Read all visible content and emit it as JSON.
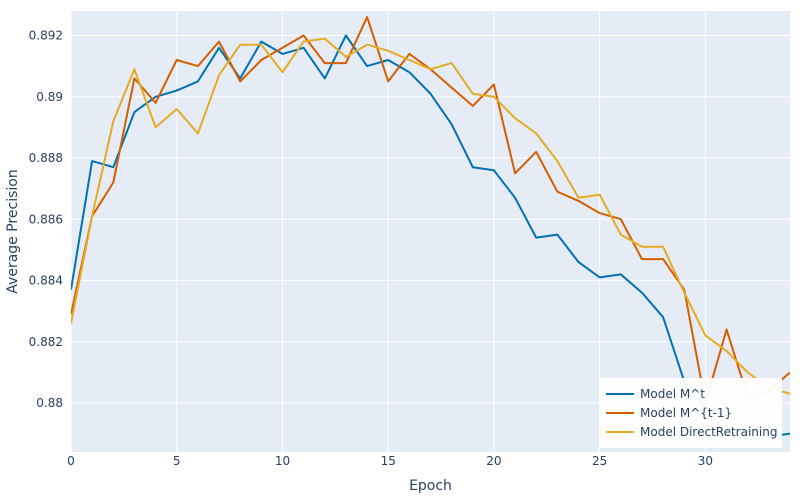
{
  "chart_data": {
    "type": "line",
    "title": "",
    "xlabel": "Epoch",
    "ylabel": "Average Precision",
    "xlim": [
      0,
      34
    ],
    "ylim": [
      0.8784,
      0.8928
    ],
    "xticks": [
      0,
      5,
      10,
      15,
      20,
      25,
      30
    ],
    "yticks": [
      0.88,
      0.882,
      0.884,
      0.886,
      0.888,
      0.89,
      0.892
    ],
    "ytick_labels": [
      "0.88",
      "0.882",
      "0.884",
      "0.886",
      "0.888",
      "0.89",
      "0.892"
    ],
    "grid": true,
    "legend_position": "bottom-right",
    "background": "#e5ecf6",
    "series": [
      {
        "name": "Model M^t",
        "color": "#0072b2",
        "x": [
          0,
          1,
          2,
          3,
          4,
          5,
          6,
          7,
          8,
          9,
          10,
          11,
          12,
          13,
          14,
          15,
          16,
          17,
          18,
          19,
          20,
          21,
          22,
          23,
          24,
          25,
          26,
          27,
          28,
          29,
          30,
          31,
          32,
          33,
          34
        ],
        "values": [
          0.8837,
          0.8879,
          0.8877,
          0.8895,
          0.89,
          0.8902,
          0.8905,
          0.8916,
          0.8906,
          0.8918,
          0.8914,
          0.8916,
          0.8906,
          0.892,
          0.891,
          0.8912,
          0.8908,
          0.8901,
          0.8891,
          0.8877,
          0.8876,
          0.8867,
          0.8854,
          0.8855,
          0.8846,
          0.8841,
          0.8842,
          0.8836,
          0.8828,
          0.8807,
          0.8798,
          0.879,
          0.8788,
          0.8789,
          0.879
        ]
      },
      {
        "name": "Model M^{t-1}",
        "color": "#d55e00",
        "x": [
          0,
          1,
          2,
          3,
          4,
          5,
          6,
          7,
          8,
          9,
          10,
          11,
          12,
          13,
          14,
          15,
          16,
          17,
          18,
          19,
          20,
          21,
          22,
          23,
          24,
          25,
          26,
          27,
          28,
          29,
          30,
          31,
          32,
          33,
          34
        ],
        "values": [
          0.8829,
          0.8861,
          0.8872,
          0.8906,
          0.8898,
          0.8912,
          0.891,
          0.8918,
          0.8905,
          0.8912,
          0.8916,
          0.892,
          0.8911,
          0.8911,
          0.8926,
          0.8905,
          0.8914,
          0.8909,
          0.8903,
          0.8897,
          0.8904,
          0.8875,
          0.8882,
          0.8869,
          0.8866,
          0.8862,
          0.886,
          0.8847,
          0.8847,
          0.8837,
          0.88,
          0.8824,
          0.8802,
          0.8804,
          0.881
        ]
      },
      {
        "name": "Model DirectRetraining",
        "color": "#e6ab24",
        "x": [
          0,
          1,
          2,
          3,
          4,
          5,
          6,
          7,
          8,
          9,
          10,
          11,
          12,
          13,
          14,
          15,
          16,
          17,
          18,
          19,
          20,
          21,
          22,
          23,
          24,
          25,
          26,
          27,
          28,
          29,
          30,
          31,
          32,
          33,
          34
        ],
        "values": [
          0.8826,
          0.8861,
          0.8892,
          0.8909,
          0.889,
          0.8896,
          0.8888,
          0.8907,
          0.8917,
          0.8917,
          0.8908,
          0.8918,
          0.8919,
          0.8913,
          0.8917,
          0.8915,
          0.8912,
          0.8909,
          0.8911,
          0.8901,
          0.89,
          0.8893,
          0.8888,
          0.8879,
          0.8867,
          0.8868,
          0.8855,
          0.8851,
          0.8851,
          0.8836,
          0.8822,
          0.8817,
          0.881,
          0.8805,
          0.8803
        ]
      }
    ]
  }
}
